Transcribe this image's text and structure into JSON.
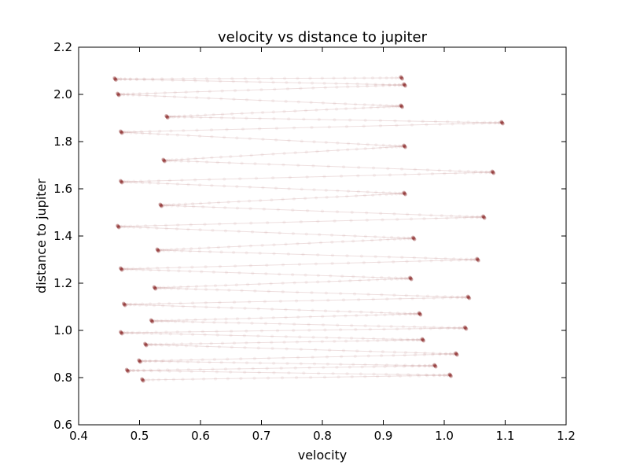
{
  "chart_data": {
    "type": "line",
    "title": "velocity vs distance to jupiter",
    "xlabel": "velocity",
    "ylabel": "distance to jupiter",
    "xlim": [
      0.4,
      1.2
    ],
    "ylim": [
      0.6,
      2.2
    ],
    "xticks": [
      "0.4",
      "0.5",
      "0.6",
      "0.7",
      "0.8",
      "0.9",
      "1.0",
      "1.1",
      "1.2"
    ],
    "yticks": [
      "0.6",
      "0.8",
      "1.0",
      "1.2",
      "1.4",
      "1.6",
      "1.8",
      "2.0",
      "2.2"
    ],
    "grid": false,
    "legend": "none",
    "style": "translucent dark red markers connected by faint lines, densest at the top and bottom turning points",
    "colors": {
      "series": "#7a0a0a",
      "axes": "#000000",
      "background": "#ffffff"
    },
    "series": [
      {
        "marker": "o",
        "turning_points": [
          {
            "x": 0.505,
            "y": 0.79
          },
          {
            "x": 1.01,
            "y": 0.81
          },
          {
            "x": 0.48,
            "y": 0.83
          },
          {
            "x": 0.985,
            "y": 0.85
          },
          {
            "x": 0.5,
            "y": 0.87
          },
          {
            "x": 1.02,
            "y": 0.9
          },
          {
            "x": 0.51,
            "y": 0.94
          },
          {
            "x": 0.965,
            "y": 0.96
          },
          {
            "x": 0.47,
            "y": 0.99
          },
          {
            "x": 1.035,
            "y": 1.01
          },
          {
            "x": 0.52,
            "y": 1.04
          },
          {
            "x": 0.96,
            "y": 1.07
          },
          {
            "x": 0.475,
            "y": 1.11
          },
          {
            "x": 1.04,
            "y": 1.14
          },
          {
            "x": 0.525,
            "y": 1.18
          },
          {
            "x": 0.945,
            "y": 1.22
          },
          {
            "x": 0.47,
            "y": 1.26
          },
          {
            "x": 1.055,
            "y": 1.3
          },
          {
            "x": 0.53,
            "y": 1.34
          },
          {
            "x": 0.95,
            "y": 1.39
          },
          {
            "x": 0.465,
            "y": 1.44
          },
          {
            "x": 1.065,
            "y": 1.48
          },
          {
            "x": 0.535,
            "y": 1.53
          },
          {
            "x": 0.935,
            "y": 1.58
          },
          {
            "x": 0.47,
            "y": 1.63
          },
          {
            "x": 1.08,
            "y": 1.67
          },
          {
            "x": 0.54,
            "y": 1.72
          },
          {
            "x": 0.935,
            "y": 1.78
          },
          {
            "x": 0.47,
            "y": 1.84
          },
          {
            "x": 1.095,
            "y": 1.88
          },
          {
            "x": 0.545,
            "y": 1.905
          },
          {
            "x": 0.93,
            "y": 1.95
          },
          {
            "x": 0.465,
            "y": 2.0
          },
          {
            "x": 0.935,
            "y": 2.04
          },
          {
            "x": 0.46,
            "y": 2.065
          },
          {
            "x": 0.93,
            "y": 2.07
          }
        ]
      }
    ]
  }
}
